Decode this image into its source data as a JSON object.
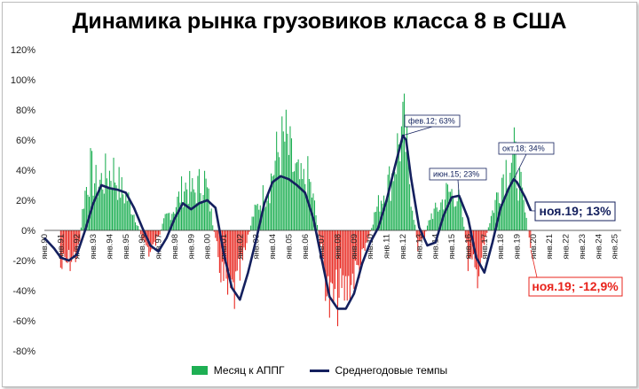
{
  "chart_data": {
    "type": "bar+line",
    "title": "Динамика рынка грузовиков класса 8 в США",
    "ylim": [
      -80,
      120
    ],
    "yticks": [
      "120%",
      "100%",
      "80%",
      "60%",
      "40%",
      "20%",
      "0%",
      "-20%",
      "-40%",
      "-60%",
      "-80%"
    ],
    "grid": false,
    "legend_position": "bottom",
    "x_tick_labels": [
      "янв.90",
      "янв.91",
      "янв.92",
      "янв.93",
      "янв.94",
      "янв.95",
      "янв.96",
      "янв.97",
      "янв.98",
      "янв.99",
      "янв.00",
      "янв.01",
      "янв.02",
      "янв.03",
      "янв.04",
      "янв.05",
      "янв.06",
      "янв.07",
      "янв.08",
      "янв.09",
      "янв.10",
      "янв.11",
      "янв.12",
      "янв.13",
      "янв.14",
      "янв.15",
      "янв.16",
      "янв.17",
      "янв.18",
      "янв.19",
      "янв.20",
      "янв.21",
      "янв.22",
      "янв.23",
      "янв.24",
      "янв.25"
    ],
    "series": [
      {
        "name": "Месяц к АППГ",
        "kind": "bar",
        "positive_color": "#1eaf53",
        "negative_color": "#e8241c",
        "anchors_year_value": [
          [
            1991.0,
            -25
          ],
          [
            1991.6,
            -20
          ],
          [
            1992.1,
            -15
          ],
          [
            1992.4,
            20
          ],
          [
            1992.8,
            40
          ],
          [
            1993.2,
            30
          ],
          [
            1993.7,
            35
          ],
          [
            1994.2,
            40
          ],
          [
            1994.8,
            25
          ],
          [
            1995.2,
            20
          ],
          [
            1995.6,
            8
          ],
          [
            1996.0,
            -5
          ],
          [
            1996.5,
            -15
          ],
          [
            1997.0,
            -5
          ],
          [
            1997.4,
            8
          ],
          [
            1998.0,
            15
          ],
          [
            1998.6,
            30
          ],
          [
            1999.2,
            25
          ],
          [
            1999.8,
            35
          ],
          [
            2000.2,
            15
          ],
          [
            2000.5,
            -8
          ],
          [
            2000.9,
            -30
          ],
          [
            2001.3,
            -45
          ],
          [
            2001.8,
            -40
          ],
          [
            2002.3,
            -15
          ],
          [
            2002.8,
            10
          ],
          [
            2003.3,
            20
          ],
          [
            2003.8,
            30
          ],
          [
            2004.3,
            50
          ],
          [
            2004.8,
            60
          ],
          [
            2005.3,
            40
          ],
          [
            2005.8,
            30
          ],
          [
            2006.2,
            35
          ],
          [
            2006.6,
            15
          ],
          [
            2007.0,
            -15
          ],
          [
            2007.5,
            -50
          ],
          [
            2008.0,
            -45
          ],
          [
            2008.5,
            -40
          ],
          [
            2009.0,
            -30
          ],
          [
            2009.5,
            -20
          ],
          [
            2009.9,
            -5
          ],
          [
            2010.3,
            12
          ],
          [
            2010.8,
            25
          ],
          [
            2011.3,
            35
          ],
          [
            2011.8,
            60
          ],
          [
            2012.1,
            65
          ],
          [
            2012.5,
            25
          ],
          [
            2012.9,
            -10
          ],
          [
            2013.3,
            -5
          ],
          [
            2013.7,
            10
          ],
          [
            2014.2,
            15
          ],
          [
            2014.7,
            25
          ],
          [
            2015.2,
            25
          ],
          [
            2015.6,
            15
          ],
          [
            2016.0,
            -20
          ],
          [
            2016.5,
            -30
          ],
          [
            2016.9,
            -15
          ],
          [
            2017.3,
            5
          ],
          [
            2017.7,
            20
          ],
          [
            2018.2,
            40
          ],
          [
            2018.8,
            50
          ],
          [
            2019.2,
            30
          ],
          [
            2019.6,
            5
          ],
          [
            2019.85,
            -12.9
          ]
        ]
      },
      {
        "name": "Среднегодовые темпы",
        "kind": "line",
        "color": "#14205e",
        "x_year": [
          1990.0,
          1990.6,
          1991.0,
          1991.5,
          1992.0,
          1992.5,
          1993.0,
          1993.5,
          1994.0,
          1994.5,
          1995.0,
          1995.5,
          1996.0,
          1996.5,
          1997.0,
          1997.5,
          1998.0,
          1998.5,
          1999.0,
          1999.5,
          2000.0,
          2000.5,
          2001.0,
          2001.5,
          2002.0,
          2002.5,
          2003.0,
          2003.5,
          2004.0,
          2004.5,
          2005.0,
          2005.5,
          2006.0,
          2006.5,
          2007.0,
          2007.5,
          2008.0,
          2008.5,
          2009.0,
          2009.5,
          2010.0,
          2010.5,
          2011.0,
          2011.5,
          2012.0,
          2012.2,
          2012.5,
          2013.0,
          2013.5,
          2014.0,
          2014.5,
          2015.0,
          2015.45,
          2016.0,
          2016.5,
          2017.0,
          2017.5,
          2018.0,
          2018.5,
          2018.8,
          2019.0,
          2019.5,
          2019.85
        ],
        "y": [
          -5,
          -12,
          -18,
          -20,
          -16,
          0,
          18,
          30,
          28,
          27,
          25,
          15,
          2,
          -10,
          -14,
          -5,
          8,
          18,
          14,
          18,
          20,
          15,
          -15,
          -38,
          -46,
          -28,
          -6,
          18,
          32,
          36,
          34,
          30,
          25,
          8,
          -18,
          -44,
          -52,
          -52,
          -42,
          -22,
          -8,
          2,
          20,
          42,
          63,
          60,
          35,
          2,
          -10,
          -8,
          10,
          22,
          23,
          8,
          -18,
          -28,
          -8,
          15,
          28,
          34,
          32,
          22,
          13
        ]
      }
    ],
    "annotations": [
      {
        "text": "фев.12; 63%",
        "style": "small"
      },
      {
        "text": "июн.15; 23%",
        "style": "small"
      },
      {
        "text": "окт.18; 34%",
        "style": "small"
      },
      {
        "text": "ноя.19; 13%",
        "style": "big-blue"
      },
      {
        "text": "ноя.19; -12,9%",
        "style": "big-red"
      }
    ]
  }
}
